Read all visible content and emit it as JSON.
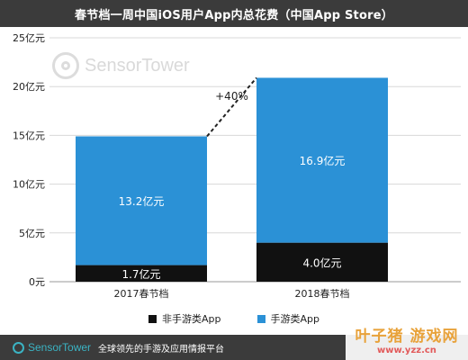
{
  "title": "春节档一周中国iOS用户App内总花费（中国App Store）",
  "watermark_text": "SensorTower",
  "footer": {
    "logo_text": "SensorTower",
    "description": "全球领先的手游及应用情报平台"
  },
  "corner_badge": {
    "main": "叶子猪 游戏网",
    "sub": "www.yzz.cn"
  },
  "chart_data": {
    "type": "bar",
    "stacked": true,
    "categories": [
      "2017春节档",
      "2018春节档"
    ],
    "series": [
      {
        "name": "非手游类App",
        "values": [
          1.7,
          4.0
        ],
        "labels": [
          "1.7亿元",
          "4.0亿元"
        ],
        "color": "#111111"
      },
      {
        "name": "手游类App",
        "values": [
          13.2,
          16.9
        ],
        "labels": [
          "13.2亿元",
          "16.9亿元"
        ],
        "color": "#2b91d6"
      }
    ],
    "y_ticks": [
      "0元",
      "5亿元",
      "10亿元",
      "15亿元",
      "20亿元",
      "25亿元"
    ],
    "ylim": [
      0,
      25
    ],
    "grid": true,
    "annotation": "+40%",
    "legend_position": "bottom"
  }
}
